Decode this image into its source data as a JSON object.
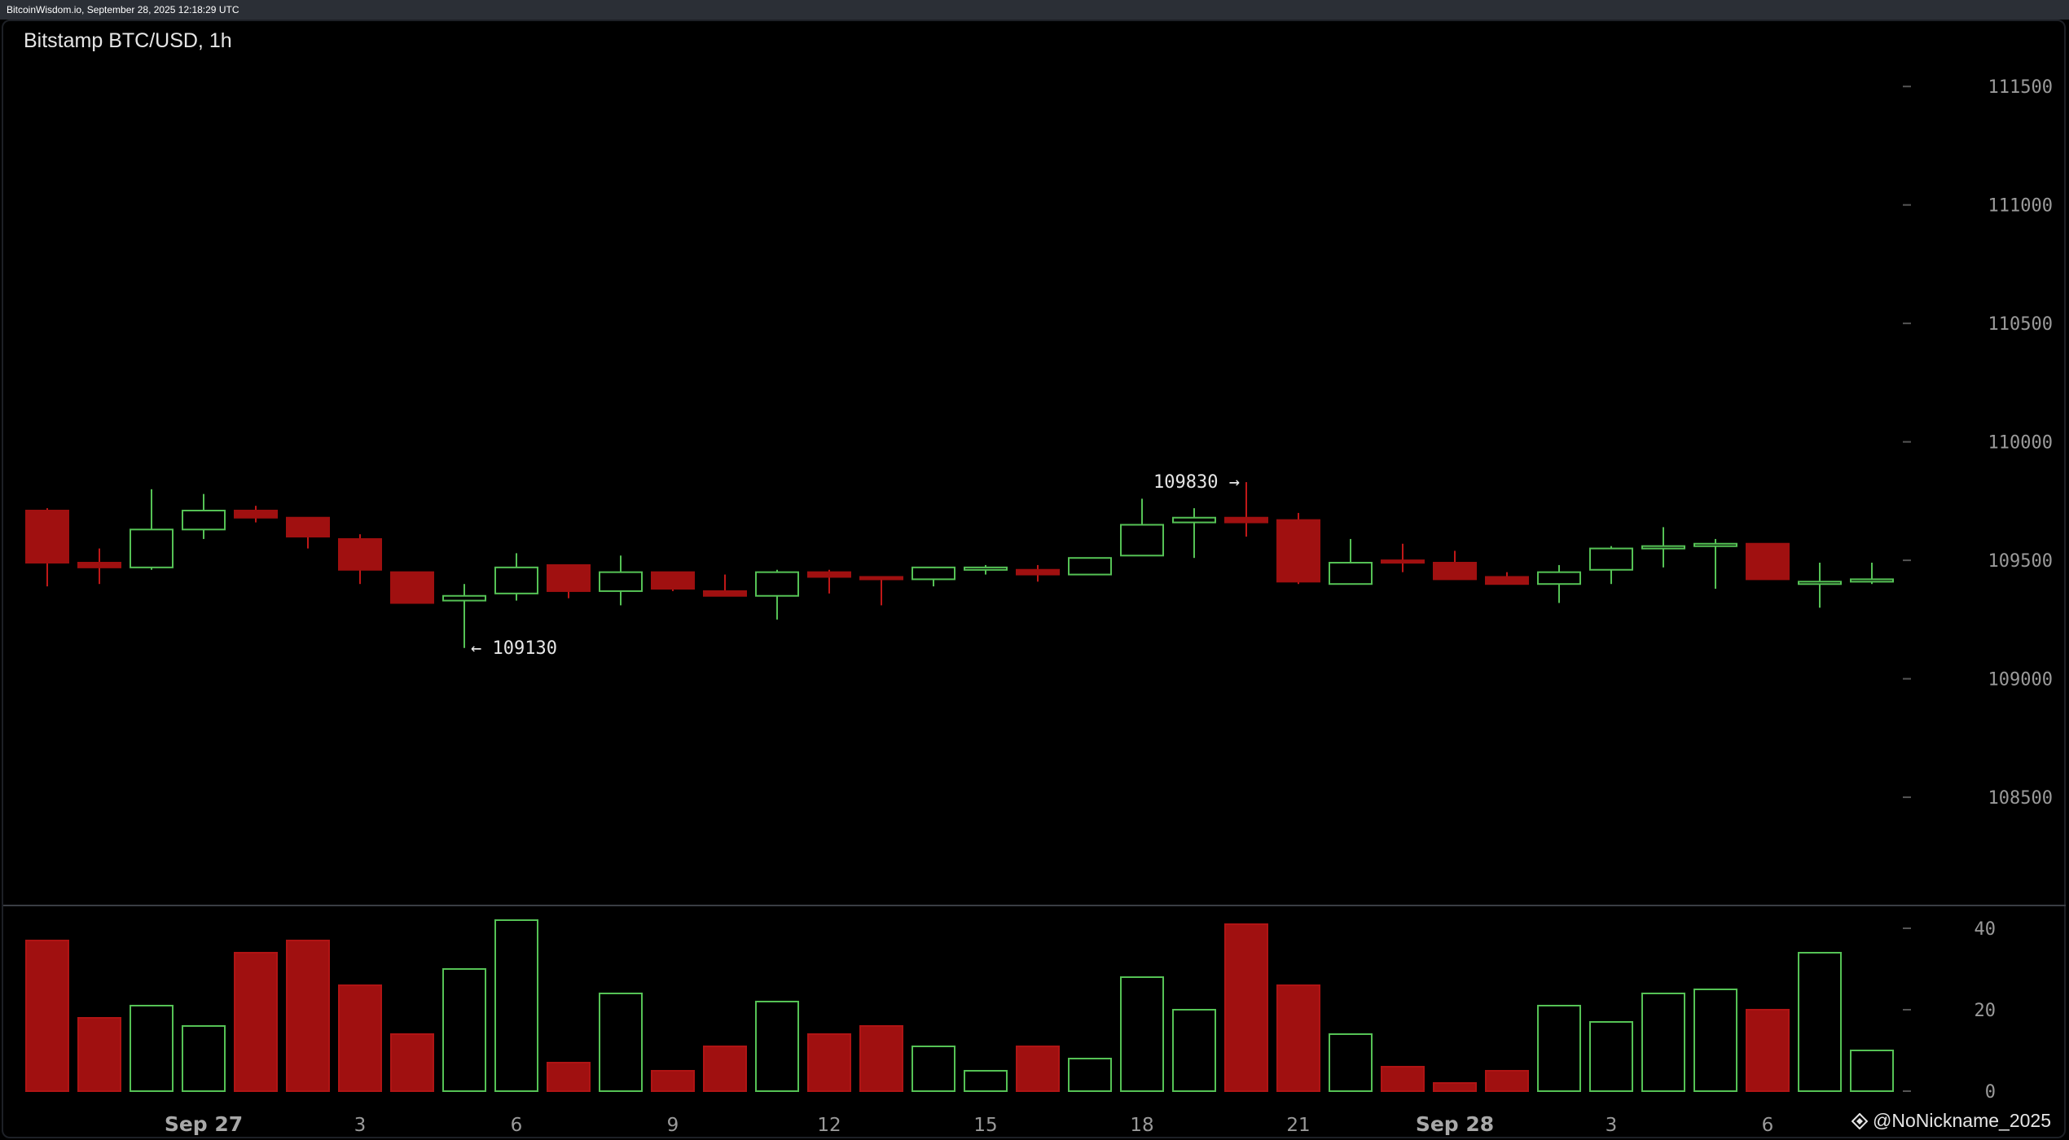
{
  "header": {
    "source_text": "BitcoinWisdom.io, September 28, 2025 12:18:29 UTC"
  },
  "chart_title": "Bitstamp BTC/USD, 1h",
  "watermark": {
    "text": "@NoNickname_2025",
    "icon": "diamond-logo-icon"
  },
  "colors": {
    "up": "#55c255",
    "down": "#a01010",
    "background": "#000000",
    "axis_text": "#9a9a9a"
  },
  "chart_data": {
    "type": "candlestick",
    "title": "Bitstamp BTC/USD, 1h",
    "price_axis": {
      "ticks": [
        "108500",
        "109000",
        "109500",
        "110000",
        "110500",
        "111000",
        "111500"
      ],
      "range": [
        108050,
        111700
      ]
    },
    "volume_axis": {
      "ticks": [
        "0",
        "20",
        "40"
      ],
      "range": [
        0,
        42
      ]
    },
    "time_labels": [
      {
        "candle": 3,
        "label": "Sep 27",
        "bold": true
      },
      {
        "candle": 6,
        "label": "3"
      },
      {
        "candle": 9,
        "label": "6"
      },
      {
        "candle": 12,
        "label": "9"
      },
      {
        "candle": 15,
        "label": "12"
      },
      {
        "candle": 18,
        "label": "15"
      },
      {
        "candle": 21,
        "label": "18"
      },
      {
        "candle": 24,
        "label": "21"
      },
      {
        "candle": 27,
        "label": "Sep 28",
        "bold": true
      },
      {
        "candle": 30,
        "label": "3"
      },
      {
        "candle": 33,
        "label": "6"
      }
    ],
    "annotations": [
      {
        "candle": 8,
        "price": 109130,
        "text": "← 109130",
        "side": "right"
      },
      {
        "candle": 23,
        "price": 109830,
        "text": "109830 →",
        "side": "left"
      }
    ],
    "candles": [
      {
        "o": 109710,
        "h": 109720,
        "l": 109390,
        "c": 109490,
        "v": 37
      },
      {
        "o": 109490,
        "h": 109550,
        "l": 109400,
        "c": 109470,
        "v": 18
      },
      {
        "o": 109470,
        "h": 109800,
        "l": 109460,
        "c": 109630,
        "v": 21
      },
      {
        "o": 109630,
        "h": 109780,
        "l": 109590,
        "c": 109710,
        "v": 16
      },
      {
        "o": 109710,
        "h": 109730,
        "l": 109660,
        "c": 109680,
        "v": 34
      },
      {
        "o": 109680,
        "h": 109680,
        "l": 109550,
        "c": 109600,
        "v": 37
      },
      {
        "o": 109590,
        "h": 109610,
        "l": 109400,
        "c": 109460,
        "v": 26
      },
      {
        "o": 109450,
        "h": 109450,
        "l": 109320,
        "c": 109320,
        "v": 14
      },
      {
        "o": 109330,
        "h": 109400,
        "l": 109130,
        "c": 109350,
        "v": 30
      },
      {
        "o": 109360,
        "h": 109530,
        "l": 109330,
        "c": 109470,
        "v": 42
      },
      {
        "o": 109480,
        "h": 109480,
        "l": 109340,
        "c": 109370,
        "v": 7
      },
      {
        "o": 109370,
        "h": 109520,
        "l": 109310,
        "c": 109450,
        "v": 24
      },
      {
        "o": 109450,
        "h": 109450,
        "l": 109370,
        "c": 109380,
        "v": 5
      },
      {
        "o": 109370,
        "h": 109440,
        "l": 109350,
        "c": 109350,
        "v": 11
      },
      {
        "o": 109350,
        "h": 109460,
        "l": 109250,
        "c": 109450,
        "v": 22
      },
      {
        "o": 109450,
        "h": 109460,
        "l": 109360,
        "c": 109430,
        "v": 14
      },
      {
        "o": 109430,
        "h": 109430,
        "l": 109310,
        "c": 109420,
        "v": 16
      },
      {
        "o": 109420,
        "h": 109470,
        "l": 109390,
        "c": 109470,
        "v": 11
      },
      {
        "o": 109470,
        "h": 109480,
        "l": 109440,
        "c": 109470,
        "v": 5
      },
      {
        "o": 109460,
        "h": 109480,
        "l": 109410,
        "c": 109440,
        "v": 11
      },
      {
        "o": 109440,
        "h": 109510,
        "l": 109440,
        "c": 109510,
        "v": 8
      },
      {
        "o": 109520,
        "h": 109760,
        "l": 109520,
        "c": 109650,
        "v": 28
      },
      {
        "o": 109660,
        "h": 109720,
        "l": 109510,
        "c": 109680,
        "v": 20
      },
      {
        "o": 109680,
        "h": 109830,
        "l": 109600,
        "c": 109660,
        "v": 41
      },
      {
        "o": 109670,
        "h": 109700,
        "l": 109400,
        "c": 109410,
        "v": 26
      },
      {
        "o": 109400,
        "h": 109590,
        "l": 109400,
        "c": 109490,
        "v": 14
      },
      {
        "o": 109500,
        "h": 109570,
        "l": 109450,
        "c": 109490,
        "v": 6
      },
      {
        "o": 109490,
        "h": 109540,
        "l": 109420,
        "c": 109420,
        "v": 2
      },
      {
        "o": 109430,
        "h": 109450,
        "l": 109400,
        "c": 109400,
        "v": 5
      },
      {
        "o": 109400,
        "h": 109480,
        "l": 109320,
        "c": 109450,
        "v": 21
      },
      {
        "o": 109460,
        "h": 109560,
        "l": 109400,
        "c": 109550,
        "v": 17
      },
      {
        "o": 109550,
        "h": 109640,
        "l": 109470,
        "c": 109560,
        "v": 24
      },
      {
        "o": 109560,
        "h": 109590,
        "l": 109380,
        "c": 109570,
        "v": 25
      },
      {
        "o": 109570,
        "h": 109570,
        "l": 109420,
        "c": 109420,
        "v": 20
      },
      {
        "o": 109410,
        "h": 109490,
        "l": 109300,
        "c": 109410,
        "v": 34
      },
      {
        "o": 109410,
        "h": 109490,
        "l": 109400,
        "c": 109420,
        "v": 10
      }
    ]
  }
}
